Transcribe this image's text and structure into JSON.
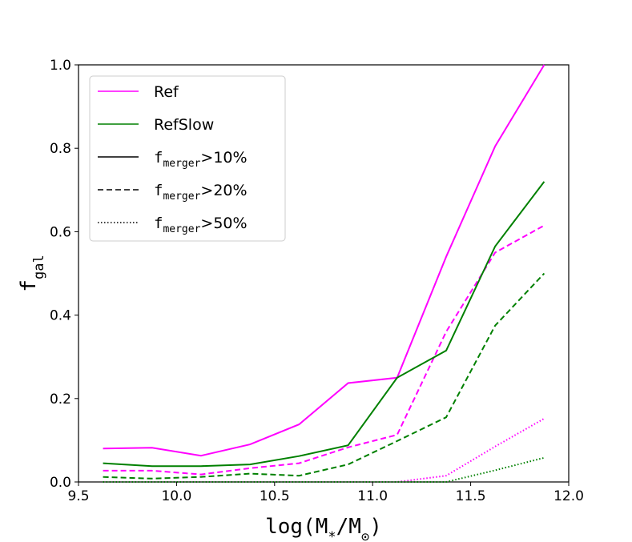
{
  "chart_data": {
    "type": "line",
    "title": "",
    "xlabel_parts": {
      "pre": "log(M",
      "sub1": "*",
      "mid": "/M",
      "sub2": "⊙",
      "post": ")"
    },
    "ylabel_parts": {
      "main": "f",
      "sub": "gal"
    },
    "xlim": [
      9.5,
      12.0
    ],
    "ylim": [
      0.0,
      1.0
    ],
    "xticks": [
      9.5,
      10.0,
      10.5,
      11.0,
      11.5,
      12.0
    ],
    "xtick_labels": [
      "9.5",
      "10.0",
      "10.5",
      "11.0",
      "11.5",
      "12.0"
    ],
    "yticks": [
      0.0,
      0.2,
      0.4,
      0.6,
      0.8,
      1.0
    ],
    "ytick_labels": [
      "0.0",
      "0.2",
      "0.4",
      "0.6",
      "0.8",
      "1.0"
    ],
    "grid": false,
    "legend_position": "top-left",
    "x": [
      9.625,
      9.875,
      10.125,
      10.375,
      10.625,
      10.875,
      11.125,
      11.375,
      11.625,
      11.875
    ],
    "series": [
      {
        "name": "Ref",
        "simulation": "Ref",
        "color": "#ff00ff",
        "style": "solid",
        "values": [
          0.08,
          0.082,
          0.063,
          0.09,
          0.138,
          0.237,
          0.25,
          0.54,
          0.805,
          1.0
        ]
      },
      {
        "name": "Ref",
        "simulation": "Ref",
        "color": "#ff00ff",
        "style": "dashed",
        "values": [
          0.027,
          0.027,
          0.018,
          0.033,
          0.045,
          0.083,
          0.113,
          0.36,
          0.55,
          0.615
        ]
      },
      {
        "name": "Ref",
        "simulation": "Ref",
        "color": "#ff00ff",
        "style": "dotted",
        "values": [
          0.0,
          0.0,
          0.0,
          0.0,
          0.0,
          0.0,
          0.0,
          0.015,
          0.085,
          0.152
        ]
      },
      {
        "name": "RefSlow",
        "simulation": "RefSlow",
        "color": "#008000",
        "style": "solid",
        "values": [
          0.045,
          0.038,
          0.038,
          0.042,
          0.062,
          0.088,
          0.25,
          0.315,
          0.565,
          0.72
        ]
      },
      {
        "name": "RefSlow",
        "simulation": "RefSlow",
        "color": "#008000",
        "style": "dashed",
        "values": [
          0.012,
          0.008,
          0.012,
          0.02,
          0.015,
          0.042,
          0.098,
          0.155,
          0.375,
          0.5
        ]
      },
      {
        "name": "RefSlow",
        "simulation": "RefSlow",
        "color": "#008000",
        "style": "dotted",
        "values": [
          0.0,
          0.0,
          0.0,
          0.0,
          0.0,
          0.0,
          0.0,
          0.0,
          0.028,
          0.058
        ]
      }
    ],
    "legend": [
      {
        "kind": "color",
        "label": "Ref",
        "color": "#ff00ff",
        "style": "solid"
      },
      {
        "kind": "color",
        "label": "RefSlow",
        "color": "#008000",
        "style": "solid"
      },
      {
        "kind": "style",
        "label_main": "f",
        "label_sub": "merger",
        "label_tail": ">10%",
        "color": "#000000",
        "style": "solid"
      },
      {
        "kind": "style",
        "label_main": "f",
        "label_sub": "merger",
        "label_tail": ">20%",
        "color": "#000000",
        "style": "dashed"
      },
      {
        "kind": "style",
        "label_main": "f",
        "label_sub": "merger",
        "label_tail": ">50%",
        "color": "#000000",
        "style": "dotted"
      }
    ]
  }
}
